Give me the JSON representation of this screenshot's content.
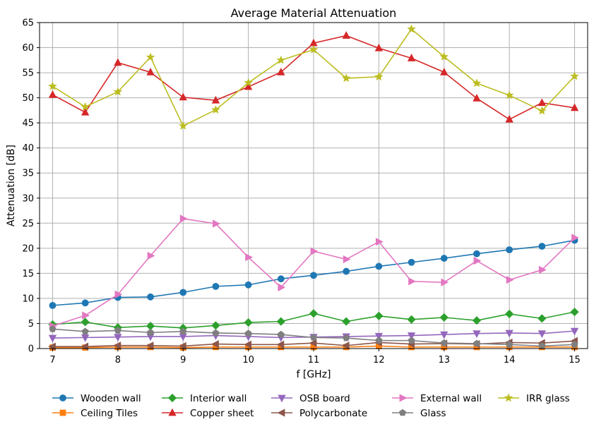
{
  "chart_data": {
    "type": "line",
    "title": "Average Material Attenuation",
    "xlabel": "f [GHz]",
    "ylabel": "Attenuation [dB]",
    "xlim": [
      6.8,
      15.2
    ],
    "ylim": [
      0,
      65
    ],
    "xticks": [
      7,
      8,
      9,
      10,
      11,
      12,
      13,
      14,
      15
    ],
    "yticks": [
      0,
      5,
      10,
      15,
      20,
      25,
      30,
      35,
      40,
      45,
      50,
      55,
      60,
      65
    ],
    "grid": true,
    "legend_position": "bottom",
    "x": [
      7,
      7.5,
      8,
      8.5,
      9,
      9.5,
      10,
      10.5,
      11,
      11.5,
      12,
      12.5,
      13,
      13.5,
      14,
      14.5,
      15
    ],
    "series": [
      {
        "name": "Wooden wall",
        "color": "#1f77b4",
        "marker": "circle",
        "values": [
          8.6,
          9.1,
          10.2,
          10.3,
          11.2,
          12.4,
          12.7,
          13.9,
          14.6,
          15.4,
          16.4,
          17.2,
          18.0,
          18.9,
          19.7,
          20.4,
          21.6
        ]
      },
      {
        "name": "Ceiling Tiles",
        "color": "#ff7f0e",
        "marker": "square",
        "values": [
          0.2,
          0.2,
          0.3,
          0.3,
          0.2,
          0.3,
          0.3,
          0.3,
          0.3,
          0.3,
          0.5,
          0.3,
          0.3,
          0.3,
          0.3,
          0.3,
          0.3
        ]
      },
      {
        "name": "Interior wall",
        "color": "#2ca02c",
        "marker": "diamond",
        "values": [
          4.8,
          5.3,
          4.2,
          4.5,
          4.1,
          4.6,
          5.2,
          5.4,
          7.0,
          5.4,
          6.5,
          5.8,
          6.2,
          5.6,
          6.9,
          6.0,
          7.3
        ]
      },
      {
        "name": "Copper sheet",
        "color": "#d62728",
        "marker": "triangle-up",
        "values": [
          50.6,
          47.1,
          57.0,
          55.1,
          50.1,
          49.5,
          52.2,
          55.1,
          60.9,
          62.4,
          59.9,
          57.9,
          55.1,
          49.9,
          45.7,
          49.0,
          48.0
        ]
      },
      {
        "name": "OSB board",
        "color": "#9467bd",
        "marker": "triangle-down",
        "values": [
          2.1,
          2.2,
          2.3,
          2.4,
          2.4,
          2.6,
          2.4,
          2.2,
          2.3,
          2.4,
          2.5,
          2.6,
          2.8,
          3.0,
          3.1,
          3.0,
          3.5
        ]
      },
      {
        "name": "Polycarbonate",
        "color": "#8c564b",
        "marker": "triangle-left",
        "values": [
          0.4,
          0.4,
          0.6,
          0.6,
          0.5,
          0.9,
          0.8,
          0.8,
          1.1,
          0.6,
          1.2,
          0.9,
          1.0,
          0.9,
          1.2,
          1.1,
          1.5
        ]
      },
      {
        "name": "External wall",
        "color": "#e377c2",
        "marker": "triangle-right",
        "values": [
          4.5,
          6.6,
          10.8,
          18.5,
          25.9,
          24.9,
          18.2,
          12.2,
          19.4,
          17.8,
          21.3,
          13.4,
          13.2,
          17.5,
          13.7,
          15.7,
          22.1
        ]
      },
      {
        "name": "Glass",
        "color": "#7f7f7f",
        "marker": "pentagon",
        "values": [
          3.9,
          3.4,
          3.6,
          3.2,
          3.4,
          3.1,
          3.0,
          2.8,
          2.2,
          2.1,
          1.6,
          1.6,
          1.1,
          1.0,
          0.8,
          0.5,
          0.8
        ]
      },
      {
        "name": "IRR glass",
        "color": "#bcbd22",
        "marker": "star",
        "values": [
          52.3,
          48.2,
          51.2,
          58.1,
          44.4,
          47.6,
          53.0,
          57.5,
          59.6,
          53.9,
          54.2,
          63.7,
          58.2,
          52.9,
          50.5,
          47.4,
          54.3
        ]
      }
    ]
  }
}
